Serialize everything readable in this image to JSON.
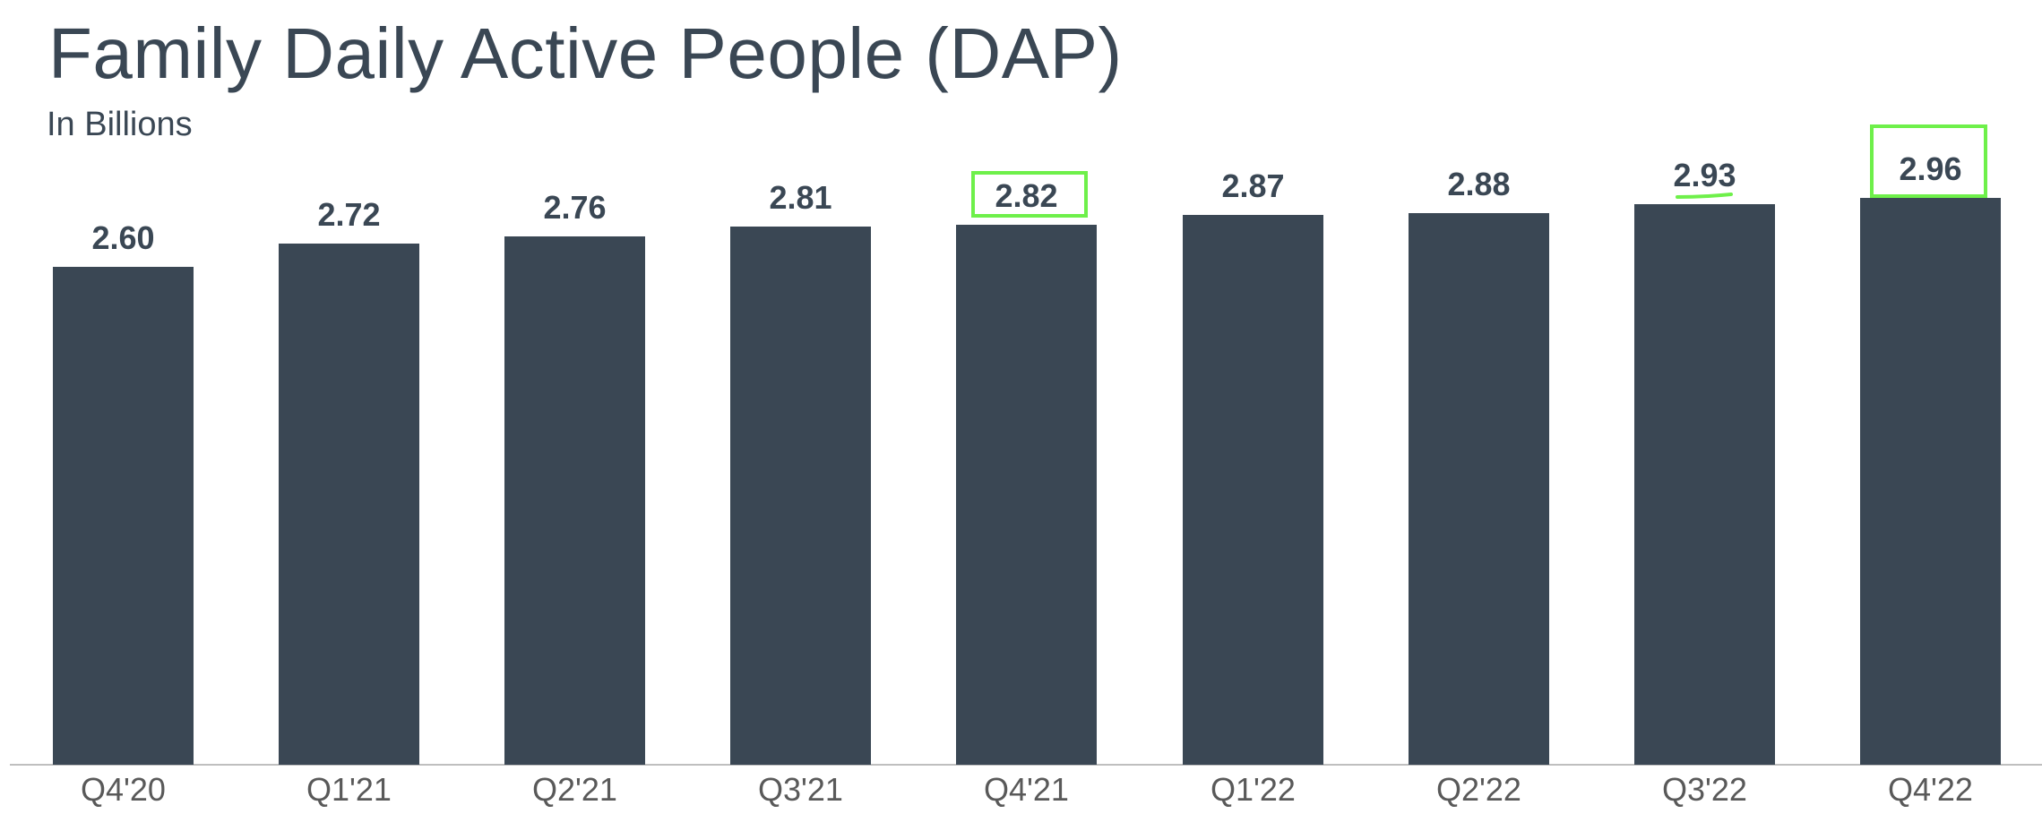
{
  "header": {
    "title": "Family Daily Active People (DAP)",
    "subtitle": "In Billions"
  },
  "colors": {
    "bar": "#3a4754",
    "highlight": "#6ef04a",
    "axis": "#bfbfbf",
    "category_text": "#595959"
  },
  "chart_data": {
    "type": "bar",
    "title": "Family Daily Active People (DAP)",
    "subtitle": "In Billions",
    "xlabel": "",
    "ylabel": "In Billions",
    "categories": [
      "Q4'20",
      "Q1'21",
      "Q2'21",
      "Q3'21",
      "Q4'21",
      "Q1'22",
      "Q2'22",
      "Q3'22",
      "Q4'22"
    ],
    "values": [
      2.6,
      2.72,
      2.76,
      2.81,
      2.82,
      2.87,
      2.88,
      2.93,
      2.96
    ],
    "value_labels": [
      "2.60",
      "2.72",
      "2.76",
      "2.81",
      "2.82",
      "2.87",
      "2.88",
      "2.93",
      "2.96"
    ],
    "ylim": [
      0,
      3.0
    ],
    "grid": false,
    "legend": null,
    "annotations": [
      {
        "type": "box",
        "target": "Q4'21",
        "label": "2.82"
      },
      {
        "type": "underline",
        "target": "Q3'22",
        "label": "2.93"
      },
      {
        "type": "box",
        "target": "Q4'22",
        "label": "2.96"
      }
    ]
  }
}
